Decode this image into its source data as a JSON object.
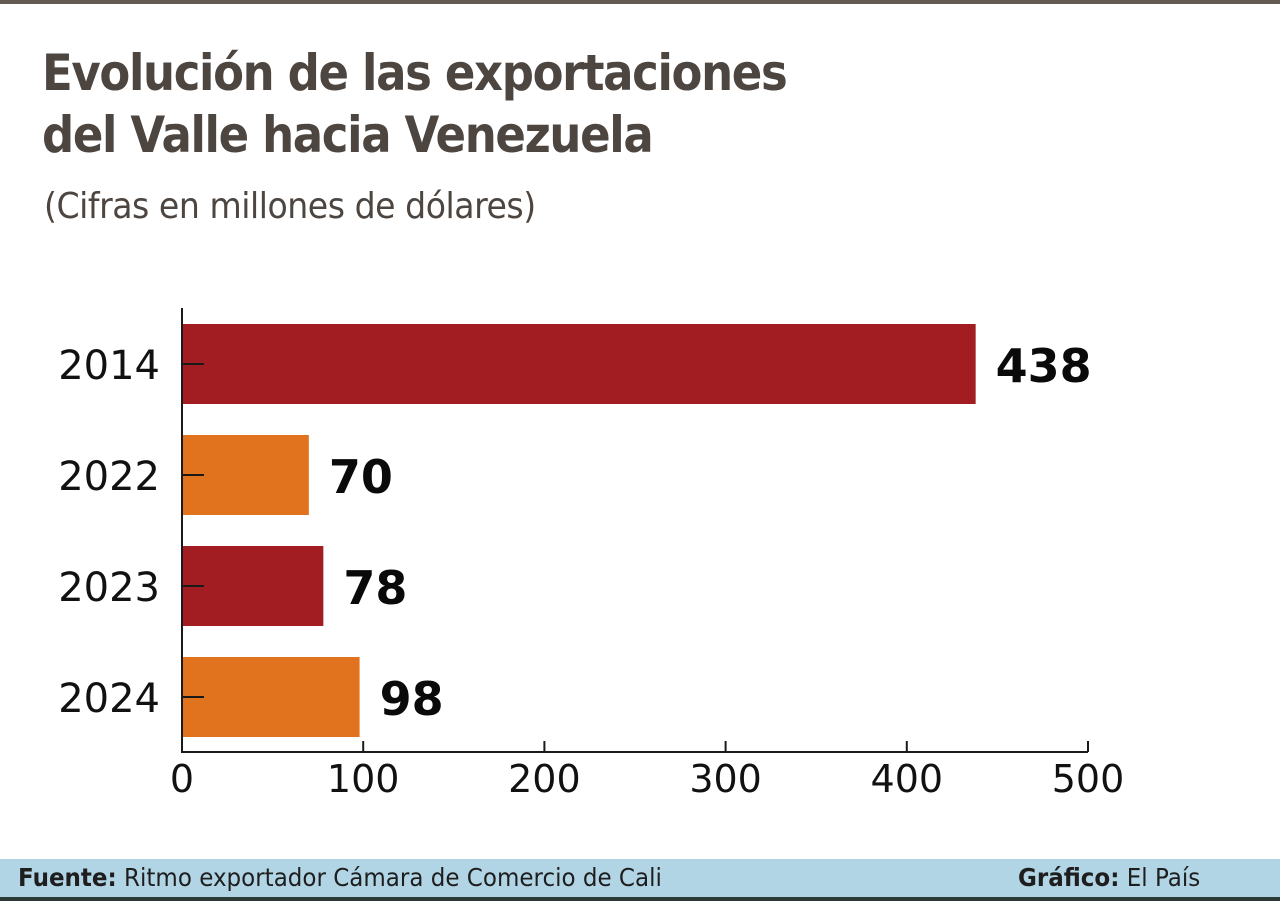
{
  "header": {
    "title_line1": "Evolución de las exportaciones",
    "title_line2": "del Valle hacia Venezuela",
    "subtitle": "(Cifras en  millones de dólares)"
  },
  "chart_data": {
    "type": "bar",
    "orientation": "horizontal",
    "title": "Evolución de las exportaciones del Valle hacia Venezuela",
    "subtitle": "(Cifras en  millones de dólares)",
    "categories": [
      "2014",
      "2022",
      "2023",
      "2024"
    ],
    "values": [
      438,
      70,
      78,
      98
    ],
    "value_labels": [
      "438",
      "70",
      "78",
      "98"
    ],
    "bar_colors": [
      "#a11d21",
      "#e1731f",
      "#a11d21",
      "#e1731f"
    ],
    "xlim": [
      0,
      500
    ],
    "xticks": [
      0,
      100,
      200,
      300,
      400,
      500
    ],
    "xtick_labels": [
      "0",
      "100",
      "200",
      "300",
      "400",
      "500"
    ],
    "xlabel": "",
    "ylabel": "",
    "grid": false
  },
  "footer": {
    "source_label": "Fuente:",
    "source_text": " Ritmo exportador Cámara de Comercio de Cali",
    "credit_label": "Gráfico:",
    "credit_text": " El País"
  },
  "colors": {
    "dark_red": "#a11d21",
    "orange": "#e1731f",
    "title": "#4d4540",
    "footer_bg": "#b2d5e6"
  }
}
